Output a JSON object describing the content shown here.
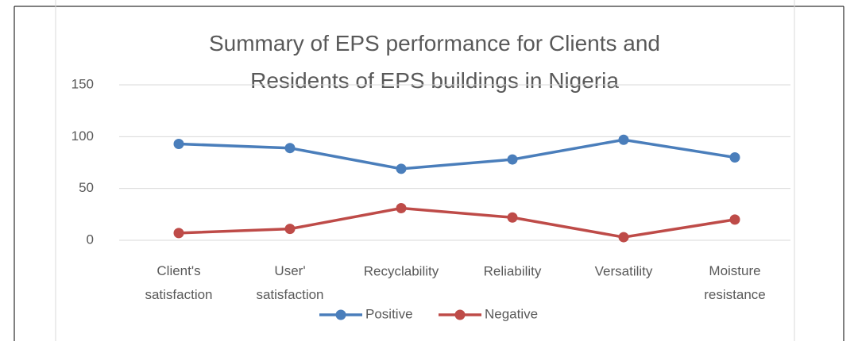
{
  "chart_data": {
    "type": "line",
    "title": "Summary of EPS performance for Clients and Residents of EPS buildings in Nigeria",
    "categories": [
      "Client's satisfaction",
      "User' satisfaction",
      "Recyclability",
      "Reliability",
      "Versatility",
      "Moisture resistance"
    ],
    "series": [
      {
        "name": "Positive",
        "color": "#4a7ebb",
        "values": [
          93,
          89,
          69,
          78,
          97,
          80
        ]
      },
      {
        "name": "Negative",
        "color": "#be4b48",
        "values": [
          7,
          11,
          31,
          22,
          3,
          20
        ]
      }
    ],
    "ylim": [
      0,
      150
    ],
    "yticks": [
      0,
      50,
      100,
      150
    ],
    "grid": true,
    "legend": "bottom"
  }
}
